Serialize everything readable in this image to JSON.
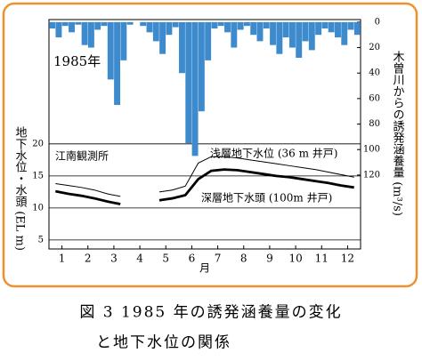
{
  "chart_data": {
    "type": "bar-line",
    "panel_label": "1985年",
    "station": "江南観測所",
    "xlabel": "月",
    "ylabel": "地下水位・水頭 (EL m)",
    "y2label": "木曽川からの誘発涵養量 (m³/s)",
    "caption": [
      "図 3 1985 年の誘発涵養量の変化",
      "と地下水位の関係"
    ],
    "xlim": [
      0.5,
      12.5
    ],
    "xticks": [
      1,
      2,
      3,
      4,
      5,
      6,
      7,
      8,
      9,
      10,
      11,
      12
    ],
    "ylim": [
      3.6,
      39.4
    ],
    "yticks": [
      5,
      10,
      15,
      20
    ],
    "y2lim": [
      178,
      -2
    ],
    "y2ticks": [
      0,
      20,
      40,
      60,
      80,
      100,
      120
    ],
    "bar_x": [
      0.625,
      0.875,
      1.125,
      1.375,
      1.625,
      1.875,
      2.125,
      2.375,
      2.625,
      2.875,
      3.125,
      3.375,
      3.625,
      3.875,
      4.125,
      4.375,
      4.625,
      4.875,
      5.125,
      5.375,
      5.625,
      5.875,
      6.125,
      6.375,
      6.625,
      6.875,
      7.125,
      7.375,
      7.625,
      7.875,
      8.125,
      8.375,
      8.625,
      8.875,
      9.125,
      9.375,
      9.625,
      9.875,
      10.125,
      10.375,
      10.625,
      10.875,
      11.125,
      11.375,
      11.625,
      11.875,
      12.125,
      12.375
    ],
    "line_x": [
      0.75,
      1.25,
      1.75,
      2.25,
      2.75,
      3.25,
      3.75,
      4.25,
      4.75,
      5.25,
      5.75,
      6.25,
      6.75,
      7.25,
      7.75,
      8.25,
      8.75,
      9.25,
      9.75,
      10.25,
      10.75,
      11.25,
      11.75,
      12.25
    ],
    "series": [
      {
        "name": "木曽川からの誘発涵養量",
        "color": "#3d8bcd",
        "axis": "y2",
        "values": [
          5,
          12,
          3,
          8,
          2,
          18,
          20,
          6,
          3,
          45,
          65,
          30,
          2,
          0,
          3,
          8,
          15,
          25,
          10,
          4,
          40,
          95,
          105,
          70,
          30,
          5,
          3,
          8,
          20,
          6,
          3,
          10,
          15,
          5,
          18,
          25,
          12,
          20,
          28,
          15,
          22,
          10,
          5,
          8,
          12,
          18,
          6,
          10
        ]
      },
      {
        "name": "浅層地下水位 (36 m 井戸)",
        "color": "#000000",
        "values": [
          13.8,
          13.5,
          13.2,
          12.8,
          12.2,
          11.8,
          null,
          null,
          12.5,
          12.8,
          13.4,
          17.0,
          18.0,
          18.0,
          17.8,
          17.5,
          17.2,
          16.9,
          16.6,
          16.3,
          16.0,
          15.6,
          15.2,
          14.8
        ]
      },
      {
        "name": "深層地下水頭 (100m 井戸)",
        "color": "#000000",
        "values": [
          12.6,
          12.2,
          11.9,
          11.5,
          11.0,
          10.6,
          null,
          null,
          11.2,
          11.5,
          12.0,
          14.5,
          15.8,
          16.0,
          15.9,
          15.6,
          15.3,
          15.0,
          14.8,
          14.5,
          14.2,
          13.9,
          13.5,
          13.2
        ]
      }
    ]
  }
}
